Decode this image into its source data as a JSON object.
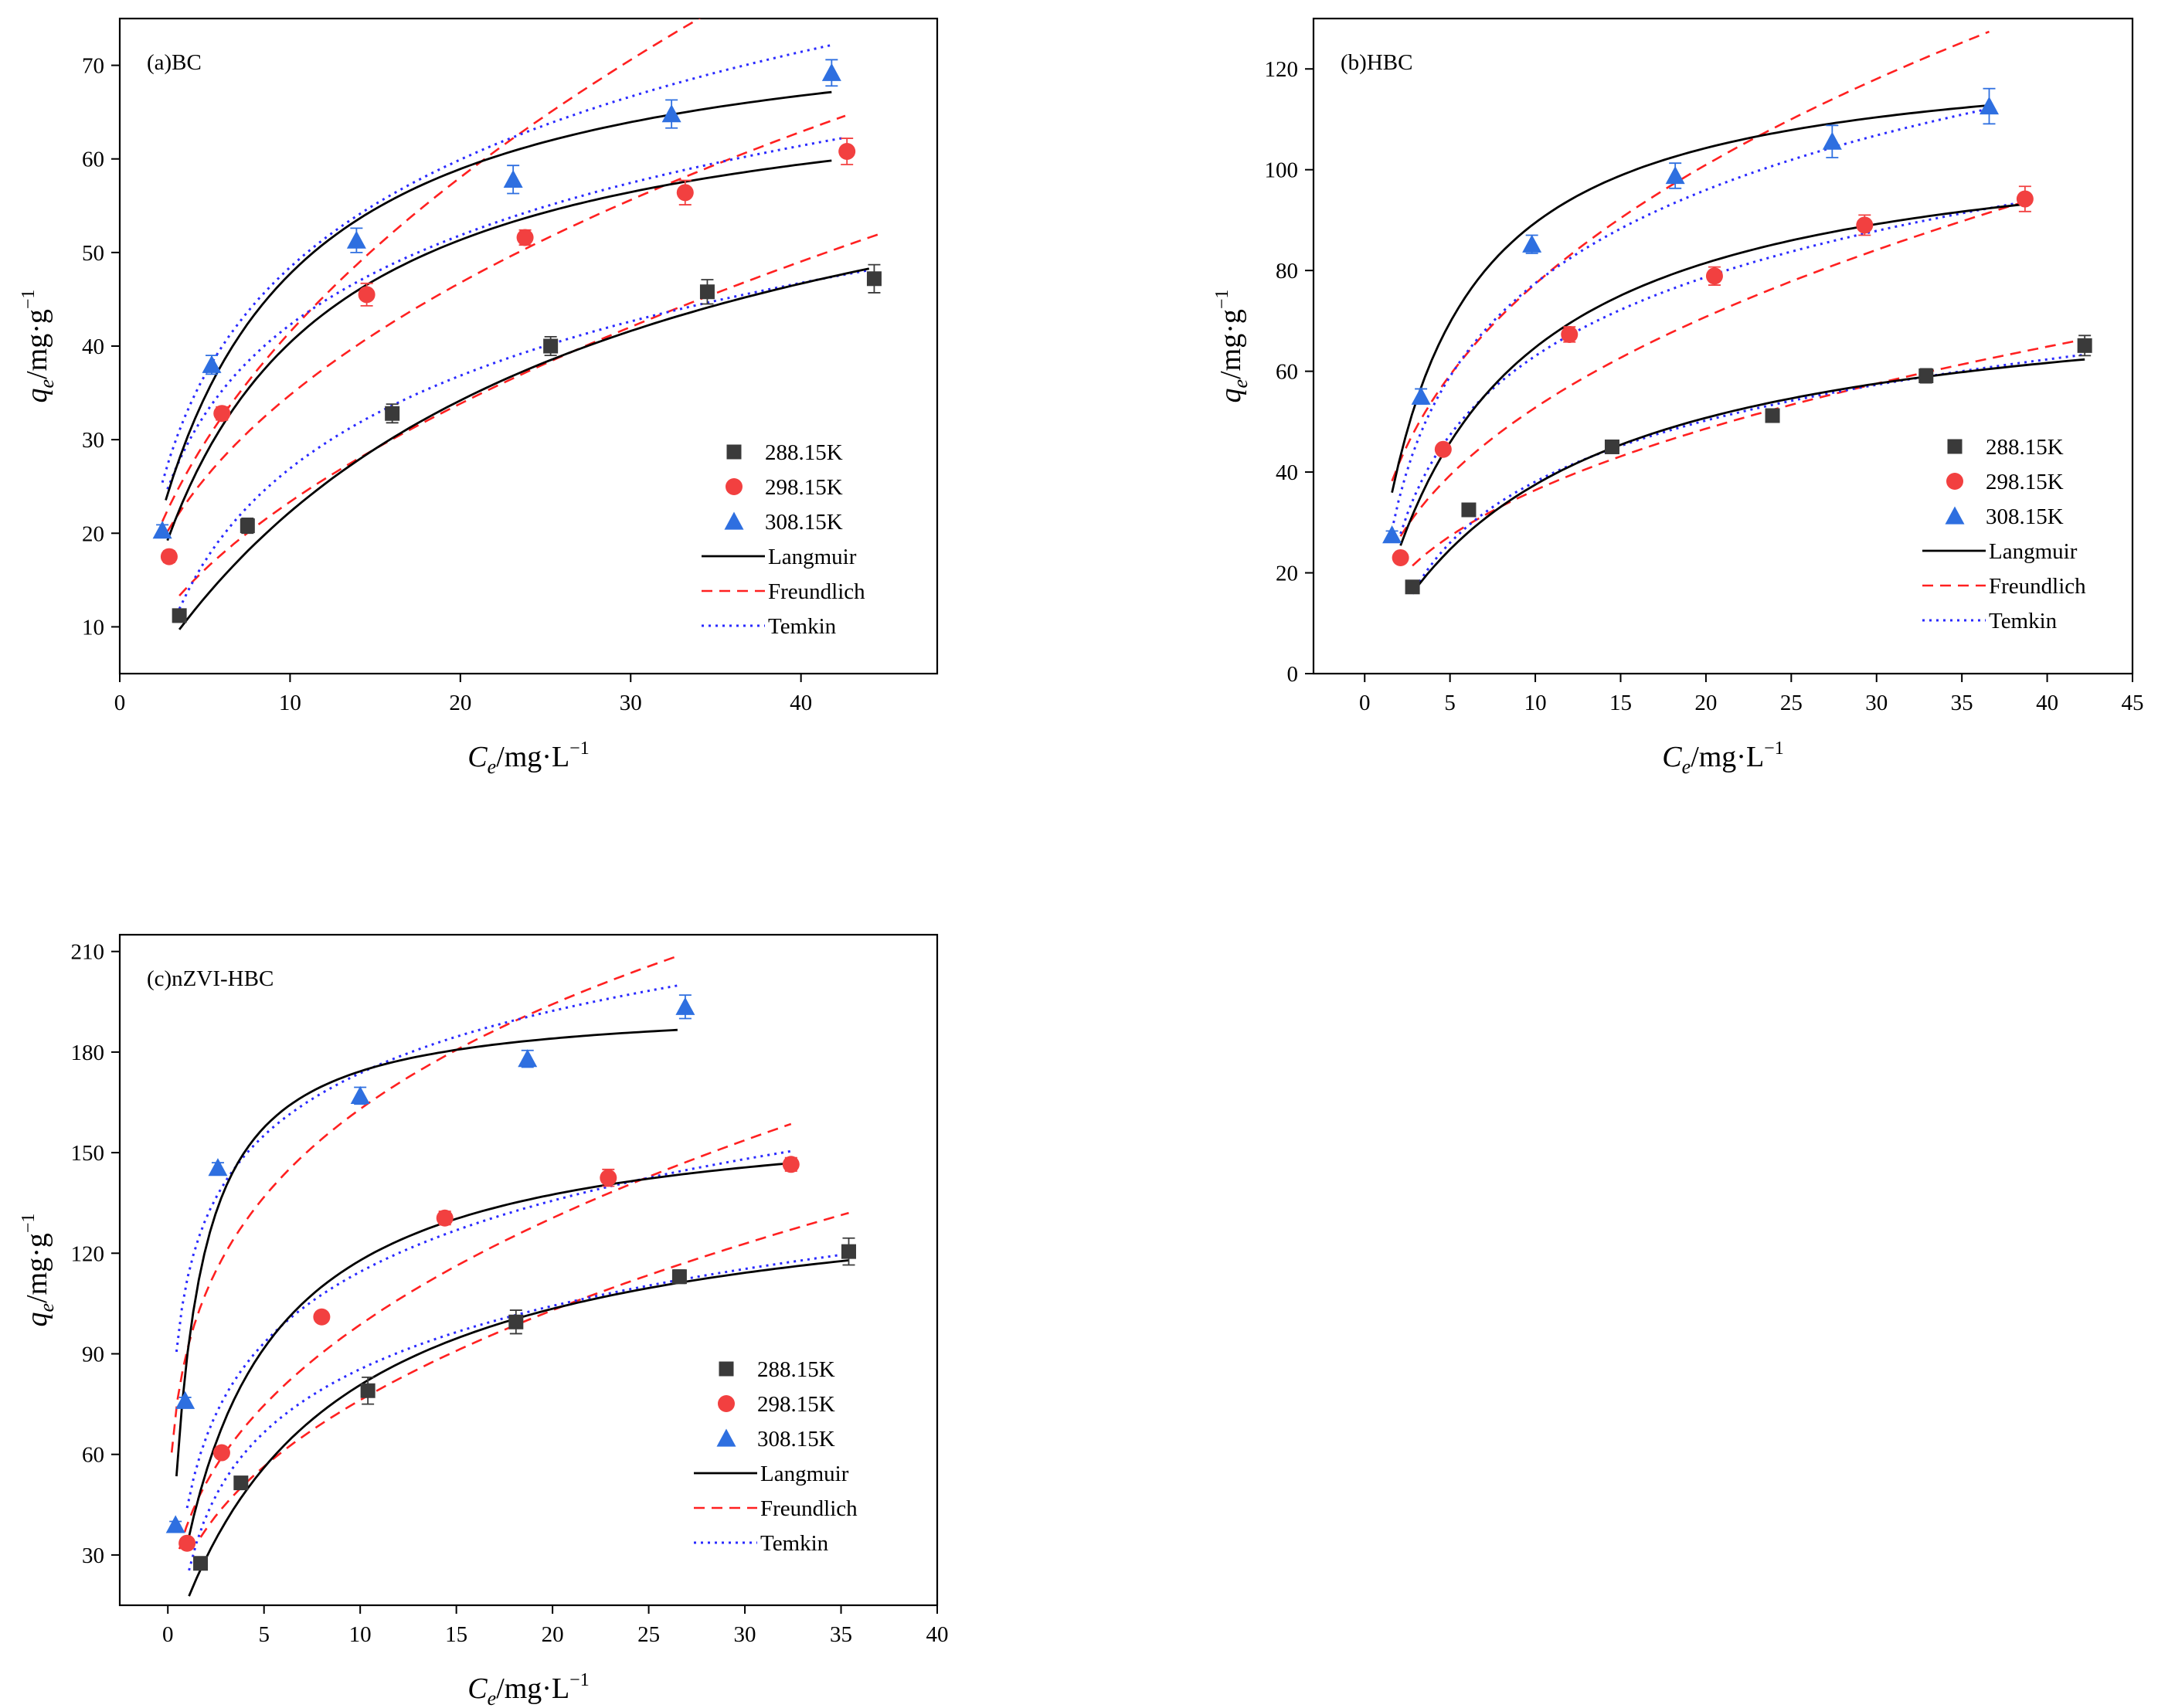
{
  "figure": {
    "series_names": [
      "288.15K",
      "298.15K",
      "308.15K"
    ],
    "fit_names": [
      "Langmuir",
      "Freundlich",
      "Temkin"
    ],
    "colors": {
      "s288": "#3a3a3a",
      "s298": "#f24040",
      "s308": "#2e6fe0",
      "langmuir": "#000000",
      "freundlich": "#ff2020",
      "temkin": "#2a2aff"
    }
  },
  "chart_data": [
    {
      "type": "scatter",
      "title": "(a)BC",
      "xlabel_main": "C",
      "xlabel_sub": "e",
      "xlabel_unit": "/mg·L",
      "xlabel_exp": "−1",
      "ylabel_main": "q",
      "ylabel_sub": "e",
      "ylabel_unit": "/mg·g",
      "ylabel_exp": "−1",
      "xlim": [
        0,
        48
      ],
      "ylim": [
        5,
        75
      ],
      "xticks": [
        0,
        10,
        20,
        30,
        40
      ],
      "yticks": [
        10,
        20,
        30,
        40,
        50,
        60,
        70
      ],
      "legend_position": "bottom-right",
      "series": [
        {
          "name": "288.15K",
          "marker": "square",
          "x": [
            3.5,
            7.5,
            16.0,
            25.3,
            34.5,
            44.3
          ],
          "y": [
            11.2,
            20.8,
            32.8,
            40.0,
            45.8,
            47.2
          ],
          "err": [
            0.7,
            0.8,
            1.0,
            1.0,
            1.3,
            1.5
          ]
        },
        {
          "name": "298.15K",
          "marker": "circle",
          "x": [
            2.9,
            6.0,
            14.5,
            23.8,
            33.2,
            42.7
          ],
          "y": [
            17.5,
            32.8,
            45.5,
            51.6,
            56.4,
            60.8
          ],
          "err": [
            0.6,
            0.7,
            1.2,
            0.8,
            1.3,
            1.4
          ]
        },
        {
          "name": "308.15K",
          "marker": "triangle",
          "x": [
            2.5,
            5.4,
            13.9,
            23.1,
            32.4,
            41.8
          ],
          "y": [
            20.3,
            38.0,
            51.3,
            57.8,
            64.8,
            69.2
          ],
          "err": [
            0.6,
            1.0,
            1.3,
            1.5,
            1.5,
            1.4
          ]
        }
      ],
      "fits": {
        "langmuir": [
          {
            "series": "288.15K",
            "x_range": [
              3.5,
              44.0
            ],
            "qmax": 73.5,
            "K": 0.0435
          },
          {
            "series": "298.15K",
            "x_range": [
              2.8,
              41.8
            ],
            "qmax": 70.5,
            "K": 0.134
          },
          {
            "series": "308.15K",
            "x_range": [
              2.7,
              41.8
            ],
            "qmax": 77.0,
            "K": 0.163
          }
        ],
        "freundlich": [
          {
            "series": "288.15K",
            "x_range": [
              3.5,
              44.5
            ],
            "Kf": 6.82,
            "n": 1.87
          },
          {
            "series": "298.15K",
            "x_range": [
              2.8,
              42.6
            ],
            "Kf": 13.0,
            "n": 2.34
          },
          {
            "series": "308.15K",
            "x_range": [
              2.5,
              41.8
            ],
            "Kf": 13.65,
            "n": 2.07
          }
        ],
        "temkin": [
          {
            "series": "288.15K",
            "x_range": [
              3.5,
              44.0
            ],
            "A": -6.0,
            "B": 14.3
          },
          {
            "series": "298.15K",
            "x_range": [
              2.8,
              42.5
            ],
            "A": 10.5,
            "B": 13.8
          },
          {
            "series": "308.15K",
            "x_range": [
              2.5,
              41.8
            ],
            "A": 10.2,
            "B": 16.6
          }
        ]
      }
    },
    {
      "type": "scatter",
      "title": "(b)HBC",
      "xlabel_main": "C",
      "xlabel_sub": "e",
      "xlabel_unit": "/mg·L",
      "xlabel_exp": "−1",
      "ylabel_main": "q",
      "ylabel_sub": "e",
      "ylabel_unit": "/mg·g",
      "ylabel_exp": "−1",
      "xlim": [
        -3,
        45
      ],
      "ylim": [
        0,
        130
      ],
      "xticks": [
        0,
        5,
        10,
        15,
        20,
        25,
        30,
        35,
        40,
        45
      ],
      "yticks": [
        0,
        20,
        40,
        60,
        80,
        100,
        120
      ],
      "legend_position": "bottom-right",
      "series": [
        {
          "name": "288.15K",
          "marker": "square",
          "x": [
            2.8,
            6.1,
            14.5,
            23.9,
            32.9,
            42.2
          ],
          "y": [
            17.2,
            32.5,
            45.0,
            51.2,
            59.1,
            65.1
          ],
          "err": [
            0.8,
            1.0,
            1.2,
            1.0,
            1.4,
            2.0
          ]
        },
        {
          "name": "298.15K",
          "marker": "circle",
          "x": [
            2.1,
            4.6,
            12.0,
            20.5,
            29.3,
            38.7
          ],
          "y": [
            23.0,
            44.5,
            67.3,
            78.9,
            89.0,
            94.2
          ],
          "err": [
            0.7,
            1.0,
            1.5,
            1.8,
            2.0,
            2.5
          ]
        },
        {
          "name": "308.15K",
          "marker": "triangle",
          "x": [
            1.6,
            3.3,
            9.8,
            18.2,
            27.4,
            36.6
          ],
          "y": [
            27.5,
            55.0,
            85.2,
            98.8,
            105.6,
            112.6
          ],
          "err": [
            0.8,
            1.5,
            1.8,
            2.5,
            3.2,
            3.5
          ]
        }
      ],
      "fits": {
        "langmuir": [
          {
            "series": "288.15K",
            "x_range": [
              2.8,
              42.2
            ],
            "qmax": 78.5,
            "K": 0.0915
          },
          {
            "series": "298.15K",
            "x_range": [
              2.1,
              38.7
            ],
            "qmax": 110.0,
            "K": 0.143
          },
          {
            "series": "308.15K",
            "x_range": [
              1.6,
              36.6
            ],
            "qmax": 125.0,
            "K": 0.252
          }
        ],
        "freundlich": [
          {
            "series": "288.15K",
            "x_range": [
              2.8,
              42.2
            ],
            "Kf": 13.95,
            "n": 2.4
          },
          {
            "series": "298.15K",
            "x_range": [
              2.1,
              38.7
            ],
            "Kf": 19.9,
            "n": 2.36
          },
          {
            "series": "308.15K",
            "x_range": [
              1.6,
              36.6
            ],
            "Kf": 31.9,
            "n": 2.6
          }
        ],
        "temkin": [
          {
            "series": "288.15K",
            "x_range": [
              2.8,
              42.2
            ],
            "A": -2.2,
            "B": 17.5
          },
          {
            "series": "298.15K",
            "x_range": [
              2.1,
              38.7
            ],
            "A": 11.0,
            "B": 22.6
          },
          {
            "series": "308.15K",
            "x_range": [
              1.6,
              36.6
            ],
            "A": 16.0,
            "B": 26.7
          }
        ]
      }
    },
    {
      "type": "scatter",
      "title": "(c)nZVI-HBC",
      "xlabel_main": "C",
      "xlabel_sub": "e",
      "xlabel_unit": "/mg·L",
      "xlabel_exp": "−1",
      "ylabel_main": "q",
      "ylabel_sub": "e",
      "ylabel_unit": "/mg·g",
      "ylabel_exp": "−1",
      "xlim": [
        -2.5,
        40
      ],
      "ylim": [
        15,
        215
      ],
      "xticks": [
        0,
        5,
        10,
        15,
        20,
        25,
        30,
        35,
        40
      ],
      "yticks": [
        30,
        60,
        90,
        120,
        150,
        180,
        210
      ],
      "legend_position": "bottom-right",
      "series": [
        {
          "name": "288.15K",
          "marker": "square",
          "x": [
            1.7,
            3.8,
            10.4,
            18.1,
            26.6,
            35.4
          ],
          "y": [
            27.5,
            51.5,
            79.0,
            99.5,
            113.0,
            120.5
          ],
          "err": [
            1.5,
            1.5,
            4.0,
            3.5,
            2.0,
            4.0
          ]
        },
        {
          "name": "298.15K",
          "marker": "circle",
          "x": [
            1.0,
            2.8,
            8.0,
            14.4,
            22.9,
            32.4
          ],
          "y": [
            33.5,
            60.5,
            101.0,
            130.5,
            142.5,
            146.5
          ],
          "err": [
            1.0,
            1.0,
            1.5,
            2.0,
            2.5,
            2.0
          ]
        },
        {
          "name": "308.15K",
          "marker": "triangle",
          "x": [
            0.4,
            0.9,
            2.6,
            10.0,
            18.7,
            26.9
          ],
          "y": [
            39.0,
            76.0,
            145.5,
            167.0,
            178.0,
            193.5
          ],
          "err": [
            1.0,
            1.0,
            1.5,
            2.5,
            2.5,
            3.5
          ]
        }
      ],
      "fits": {
        "langmuir": [
          {
            "series": "288.15K",
            "x_range": [
              1.1,
              35.4
            ],
            "qmax": 144.0,
            "K": 0.1275
          },
          {
            "series": "298.15K",
            "x_range": [
              1.0,
              32.4
            ],
            "qmax": 165.0,
            "K": 0.25
          },
          {
            "series": "308.15K",
            "x_range": [
              0.45,
              26.5
            ],
            "qmax": 195.0,
            "K": 0.84
          }
        ],
        "freundlich": [
          {
            "series": "288.15K",
            "x_range": [
              1.7,
              35.4
            ],
            "Kf": 28.0,
            "n": 2.3
          },
          {
            "series": "298.15K",
            "x_range": [
              0.6,
              32.4
            ],
            "Kf": 39.0,
            "n": 2.48
          },
          {
            "series": "308.15K",
            "x_range": [
              0.2,
              26.5
            ],
            "Kf": 91.0,
            "n": 3.95
          }
        ],
        "temkin": [
          {
            "series": "288.15K",
            "x_range": [
              1.1,
              35.4
            ],
            "A": 22.8,
            "B": 27.2
          },
          {
            "series": "298.15K",
            "x_range": [
              1.0,
              32.4
            ],
            "A": 44.0,
            "B": 30.6
          },
          {
            "series": "308.15K",
            "x_range": [
              0.45,
              26.5
            ],
            "A": 112.0,
            "B": 26.8
          }
        ]
      }
    }
  ]
}
